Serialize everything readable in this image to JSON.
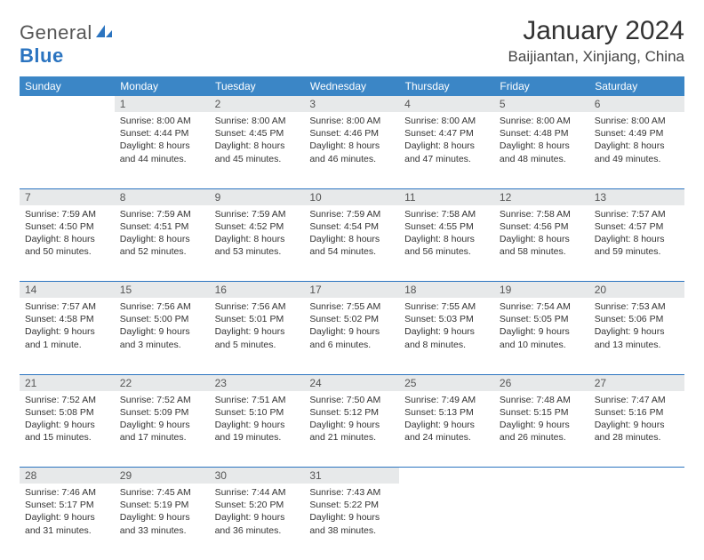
{
  "brand": {
    "part1": "General",
    "part2": "Blue"
  },
  "title": "January 2024",
  "location": "Baijiantan, Xinjiang, China",
  "colors": {
    "header_bg": "#3b86c6",
    "rule": "#2b74c0",
    "daynum_bg": "#e7e9ea",
    "text": "#333333",
    "page_bg": "#ffffff"
  },
  "weekdays": [
    "Sunday",
    "Monday",
    "Tuesday",
    "Wednesday",
    "Thursday",
    "Friday",
    "Saturday"
  ],
  "weeks": [
    [
      null,
      {
        "n": "1",
        "sr": "8:00 AM",
        "ss": "4:44 PM",
        "dl": "8 hours and 44 minutes."
      },
      {
        "n": "2",
        "sr": "8:00 AM",
        "ss": "4:45 PM",
        "dl": "8 hours and 45 minutes."
      },
      {
        "n": "3",
        "sr": "8:00 AM",
        "ss": "4:46 PM",
        "dl": "8 hours and 46 minutes."
      },
      {
        "n": "4",
        "sr": "8:00 AM",
        "ss": "4:47 PM",
        "dl": "8 hours and 47 minutes."
      },
      {
        "n": "5",
        "sr": "8:00 AM",
        "ss": "4:48 PM",
        "dl": "8 hours and 48 minutes."
      },
      {
        "n": "6",
        "sr": "8:00 AM",
        "ss": "4:49 PM",
        "dl": "8 hours and 49 minutes."
      }
    ],
    [
      {
        "n": "7",
        "sr": "7:59 AM",
        "ss": "4:50 PM",
        "dl": "8 hours and 50 minutes."
      },
      {
        "n": "8",
        "sr": "7:59 AM",
        "ss": "4:51 PM",
        "dl": "8 hours and 52 minutes."
      },
      {
        "n": "9",
        "sr": "7:59 AM",
        "ss": "4:52 PM",
        "dl": "8 hours and 53 minutes."
      },
      {
        "n": "10",
        "sr": "7:59 AM",
        "ss": "4:54 PM",
        "dl": "8 hours and 54 minutes."
      },
      {
        "n": "11",
        "sr": "7:58 AM",
        "ss": "4:55 PM",
        "dl": "8 hours and 56 minutes."
      },
      {
        "n": "12",
        "sr": "7:58 AM",
        "ss": "4:56 PM",
        "dl": "8 hours and 58 minutes."
      },
      {
        "n": "13",
        "sr": "7:57 AM",
        "ss": "4:57 PM",
        "dl": "8 hours and 59 minutes."
      }
    ],
    [
      {
        "n": "14",
        "sr": "7:57 AM",
        "ss": "4:58 PM",
        "dl": "9 hours and 1 minute."
      },
      {
        "n": "15",
        "sr": "7:56 AM",
        "ss": "5:00 PM",
        "dl": "9 hours and 3 minutes."
      },
      {
        "n": "16",
        "sr": "7:56 AM",
        "ss": "5:01 PM",
        "dl": "9 hours and 5 minutes."
      },
      {
        "n": "17",
        "sr": "7:55 AM",
        "ss": "5:02 PM",
        "dl": "9 hours and 6 minutes."
      },
      {
        "n": "18",
        "sr": "7:55 AM",
        "ss": "5:03 PM",
        "dl": "9 hours and 8 minutes."
      },
      {
        "n": "19",
        "sr": "7:54 AM",
        "ss": "5:05 PM",
        "dl": "9 hours and 10 minutes."
      },
      {
        "n": "20",
        "sr": "7:53 AM",
        "ss": "5:06 PM",
        "dl": "9 hours and 13 minutes."
      }
    ],
    [
      {
        "n": "21",
        "sr": "7:52 AM",
        "ss": "5:08 PM",
        "dl": "9 hours and 15 minutes."
      },
      {
        "n": "22",
        "sr": "7:52 AM",
        "ss": "5:09 PM",
        "dl": "9 hours and 17 minutes."
      },
      {
        "n": "23",
        "sr": "7:51 AM",
        "ss": "5:10 PM",
        "dl": "9 hours and 19 minutes."
      },
      {
        "n": "24",
        "sr": "7:50 AM",
        "ss": "5:12 PM",
        "dl": "9 hours and 21 minutes."
      },
      {
        "n": "25",
        "sr": "7:49 AM",
        "ss": "5:13 PM",
        "dl": "9 hours and 24 minutes."
      },
      {
        "n": "26",
        "sr": "7:48 AM",
        "ss": "5:15 PM",
        "dl": "9 hours and 26 minutes."
      },
      {
        "n": "27",
        "sr": "7:47 AM",
        "ss": "5:16 PM",
        "dl": "9 hours and 28 minutes."
      }
    ],
    [
      {
        "n": "28",
        "sr": "7:46 AM",
        "ss": "5:17 PM",
        "dl": "9 hours and 31 minutes."
      },
      {
        "n": "29",
        "sr": "7:45 AM",
        "ss": "5:19 PM",
        "dl": "9 hours and 33 minutes."
      },
      {
        "n": "30",
        "sr": "7:44 AM",
        "ss": "5:20 PM",
        "dl": "9 hours and 36 minutes."
      },
      {
        "n": "31",
        "sr": "7:43 AM",
        "ss": "5:22 PM",
        "dl": "9 hours and 38 minutes."
      },
      null,
      null,
      null
    ]
  ],
  "labels": {
    "sunrise": "Sunrise:",
    "sunset": "Sunset:",
    "daylight": "Daylight:"
  }
}
